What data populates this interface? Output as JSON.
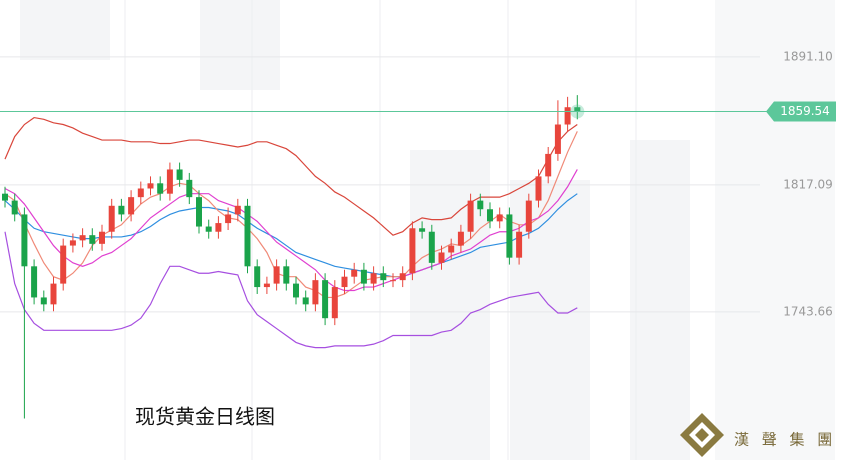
{
  "chart_data": {
    "type": "candlestick",
    "title": "现货黄金日线图",
    "watermark": "漢 聲 集 團",
    "ylim": [
      1658,
      1924
    ],
    "yticks": [
      {
        "value": 1891.1,
        "label": "1891.10"
      },
      1817.09,
      1743.66
    ],
    "grid": true,
    "last_price": 1859.54,
    "last_price_color": "#5cc79a",
    "up_color": "#e8453c",
    "down_color": "#1aa34a",
    "open": [
      1812,
      1808,
      1800,
      1770,
      1752,
      1748,
      1760,
      1782,
      1785,
      1788,
      1783,
      1790,
      1805,
      1800,
      1810,
      1815,
      1818,
      1812,
      1826,
      1820,
      1810,
      1793,
      1790,
      1795,
      1800,
      1805,
      1770,
      1758,
      1760,
      1770,
      1760,
      1752,
      1748,
      1762,
      1740,
      1758,
      1764,
      1768,
      1760,
      1766,
      1762,
      1762,
      1766,
      1792,
      1790,
      1772,
      1778,
      1782,
      1790,
      1808,
      1803,
      1796,
      1800,
      1775,
      1790,
      1808,
      1822,
      1835,
      1852,
      1862
    ],
    "high": [
      1816,
      1812,
      1804,
      1774,
      1756,
      1764,
      1786,
      1789,
      1792,
      1792,
      1794,
      1809,
      1809,
      1814,
      1819,
      1822,
      1822,
      1830,
      1830,
      1824,
      1814,
      1797,
      1799,
      1804,
      1809,
      1809,
      1774,
      1764,
      1774,
      1774,
      1764,
      1756,
      1766,
      1766,
      1762,
      1768,
      1772,
      1772,
      1770,
      1770,
      1766,
      1770,
      1796,
      1796,
      1794,
      1782,
      1786,
      1794,
      1812,
      1812,
      1807,
      1804,
      1804,
      1794,
      1812,
      1826,
      1839,
      1866,
      1868,
      1869
    ],
    "low": [
      1804,
      1796,
      1682,
      1748,
      1744,
      1744,
      1756,
      1778,
      1781,
      1779,
      1779,
      1786,
      1796,
      1796,
      1806,
      1811,
      1808,
      1808,
      1816,
      1806,
      1789,
      1786,
      1786,
      1791,
      1796,
      1766,
      1754,
      1754,
      1756,
      1756,
      1748,
      1744,
      1744,
      1736,
      1736,
      1754,
      1760,
      1756,
      1756,
      1758,
      1758,
      1758,
      1762,
      1786,
      1768,
      1768,
      1774,
      1778,
      1786,
      1799,
      1792,
      1792,
      1771,
      1771,
      1786,
      1804,
      1818,
      1831,
      1848,
      1855
    ],
    "close": [
      1808,
      1800,
      1770,
      1752,
      1748,
      1760,
      1782,
      1785,
      1788,
      1783,
      1790,
      1805,
      1800,
      1810,
      1815,
      1818,
      1812,
      1826,
      1820,
      1810,
      1793,
      1790,
      1795,
      1800,
      1805,
      1770,
      1758,
      1760,
      1770,
      1760,
      1752,
      1748,
      1762,
      1740,
      1758,
      1764,
      1768,
      1760,
      1766,
      1762,
      1762,
      1766,
      1792,
      1790,
      1772,
      1778,
      1782,
      1790,
      1808,
      1803,
      1796,
      1800,
      1775,
      1790,
      1808,
      1822,
      1835,
      1852,
      1862,
      1859.54
    ],
    "lines": [
      {
        "color": "#d9463b",
        "values": [
          1832,
          1845,
          1852,
          1856,
          1855,
          1853,
          1852,
          1850,
          1847,
          1845,
          1843,
          1843,
          1843,
          1842,
          1842,
          1842,
          1841,
          1841,
          1842,
          1843,
          1843,
          1842,
          1841,
          1840,
          1839,
          1840,
          1842,
          1842,
          1840,
          1838,
          1834,
          1828,
          1822,
          1818,
          1813,
          1810,
          1806,
          1802,
          1798,
          1793,
          1788,
          1790,
          1795,
          1798,
          1797,
          1797,
          1798,
          1803,
          1807,
          1810,
          1810,
          1810,
          1812,
          1815,
          1818,
          1822,
          1832,
          1842,
          1848,
          1852
        ]
      },
      {
        "color": "#2f8fe0",
        "values": [
          1808,
          1803,
          1797,
          1792,
          1790,
          1789,
          1788,
          1787,
          1786,
          1786,
          1787,
          1787,
          1787,
          1788,
          1790,
          1793,
          1797,
          1800,
          1802,
          1803,
          1804,
          1804,
          1803,
          1802,
          1800,
          1796,
          1792,
          1789,
          1786,
          1782,
          1778,
          1776,
          1774,
          1772,
          1770,
          1769,
          1768,
          1767,
          1766,
          1765,
          1764,
          1764,
          1766,
          1768,
          1770,
          1772,
          1774,
          1776,
          1778,
          1781,
          1782,
          1783,
          1784,
          1787,
          1789,
          1792,
          1797,
          1803,
          1808,
          1812
        ]
      },
      {
        "color": "#a64fe0",
        "values": [
          1790,
          1760,
          1745,
          1737,
          1733,
          1733,
          1733,
          1733,
          1733,
          1733,
          1733,
          1733,
          1734,
          1736,
          1740,
          1748,
          1760,
          1770,
          1770,
          1768,
          1766,
          1766,
          1767,
          1766,
          1765,
          1750,
          1742,
          1738,
          1734,
          1730,
          1726,
          1724,
          1723,
          1723,
          1724,
          1724,
          1724,
          1724,
          1725,
          1727,
          1730,
          1730,
          1730,
          1730,
          1730,
          1732,
          1733,
          1737,
          1743,
          1745,
          1748,
          1750,
          1752,
          1753,
          1754,
          1755,
          1748,
          1743,
          1743,
          1746
        ]
      },
      {
        "color": "#f08a78",
        "values": [
          1812,
          1808,
          1795,
          1783,
          1772,
          1764,
          1762,
          1766,
          1772,
          1782,
          1788,
          1791,
          1794,
          1800,
          1806,
          1810,
          1812,
          1816,
          1818,
          1817,
          1812,
          1808,
          1802,
          1798,
          1797,
          1792,
          1786,
          1778,
          1766,
          1764,
          1764,
          1758,
          1756,
          1752,
          1752,
          1754,
          1758,
          1762,
          1763,
          1764,
          1764,
          1764,
          1770,
          1775,
          1778,
          1780,
          1783,
          1782,
          1786,
          1792,
          1796,
          1800,
          1796,
          1794,
          1794,
          1798,
          1808,
          1822,
          1836,
          1848
        ]
      },
      {
        "color": "#e040d0",
        "values": [
          1815,
          1812,
          1806,
          1798,
          1790,
          1782,
          1776,
          1772,
          1770,
          1772,
          1776,
          1778,
          1782,
          1786,
          1792,
          1798,
          1802,
          1806,
          1810,
          1812,
          1812,
          1812,
          1808,
          1806,
          1804,
          1800,
          1796,
          1790,
          1784,
          1780,
          1776,
          1772,
          1768,
          1762,
          1758,
          1756,
          1756,
          1758,
          1758,
          1760,
          1762,
          1764,
          1766,
          1768,
          1770,
          1772,
          1776,
          1778,
          1780,
          1784,
          1788,
          1790,
          1790,
          1792,
          1796,
          1798,
          1802,
          1808,
          1816,
          1826
        ]
      }
    ]
  }
}
